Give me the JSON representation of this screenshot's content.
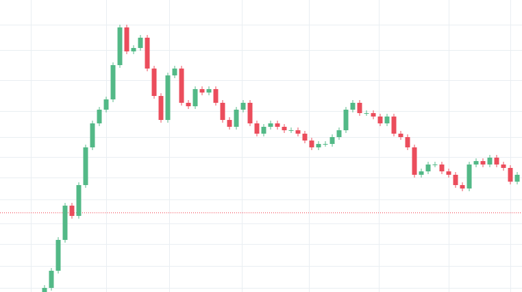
{
  "chart_data": {
    "type": "candlestick",
    "categories": [
      null,
      null,
      null,
      null,
      null,
      null,
      null,
      null,
      null,
      null,
      null,
      null,
      null,
      null,
      null,
      null,
      null,
      null,
      null,
      null,
      null,
      null,
      null,
      null,
      null,
      null,
      null,
      null,
      null,
      null,
      null,
      null,
      null,
      null,
      null,
      null,
      null,
      null,
      null,
      null,
      null,
      null,
      null,
      null,
      null,
      null,
      null,
      null,
      null,
      null,
      null,
      null,
      null,
      null,
      null,
      null,
      null,
      null,
      null,
      null,
      null,
      null,
      null,
      null,
      null,
      null,
      null,
      null,
      null,
      null
    ],
    "open": [
      0,
      6,
      31,
      76,
      126,
      111,
      156,
      211,
      246,
      266,
      281,
      331,
      386,
      351,
      356,
      371,
      326,
      286,
      251,
      316,
      326,
      276,
      271,
      296,
      291,
      296,
      276,
      251,
      241,
      266,
      276,
      246,
      231,
      241,
      246,
      241,
      236,
      236,
      231,
      221,
      211,
      216,
      216,
      226,
      236,
      266,
      276,
      261,
      261,
      256,
      246,
      256,
      231,
      226,
      211,
      171,
      176,
      186,
      186,
      176,
      171,
      156,
      151,
      186,
      191,
      186,
      196,
      186,
      181,
      161
    ],
    "high": [
      10,
      35,
      80,
      130,
      130,
      160,
      215,
      250,
      270,
      285,
      335,
      390,
      390,
      360,
      375,
      375,
      330,
      290,
      320,
      330,
      330,
      280,
      300,
      300,
      300,
      300,
      280,
      255,
      270,
      280,
      280,
      250,
      245,
      250,
      250,
      245,
      240,
      240,
      235,
      225,
      220,
      220,
      230,
      240,
      270,
      280,
      280,
      265,
      265,
      260,
      260,
      260,
      235,
      230,
      215,
      180,
      190,
      190,
      190,
      180,
      175,
      160,
      190,
      195,
      195,
      200,
      200,
      190,
      185,
      175
    ],
    "low": [
      -4,
      2,
      27,
      72,
      107,
      107,
      152,
      207,
      242,
      262,
      277,
      327,
      347,
      347,
      352,
      322,
      282,
      247,
      247,
      312,
      272,
      267,
      267,
      287,
      287,
      272,
      247,
      237,
      237,
      262,
      242,
      227,
      227,
      237,
      237,
      232,
      232,
      227,
      217,
      207,
      207,
      212,
      212,
      222,
      232,
      262,
      257,
      257,
      252,
      242,
      242,
      227,
      222,
      207,
      167,
      167,
      172,
      182,
      172,
      167,
      152,
      147,
      147,
      182,
      182,
      182,
      182,
      177,
      157,
      157
    ],
    "close": [
      6,
      31,
      76,
      126,
      111,
      156,
      211,
      246,
      266,
      281,
      331,
      386,
      351,
      356,
      371,
      326,
      286,
      251,
      316,
      326,
      276,
      271,
      296,
      291,
      296,
      276,
      251,
      241,
      266,
      276,
      246,
      231,
      241,
      246,
      241,
      236,
      236,
      231,
      221,
      211,
      216,
      216,
      226,
      236,
      266,
      276,
      261,
      261,
      256,
      246,
      256,
      231,
      226,
      211,
      171,
      176,
      186,
      186,
      176,
      171,
      156,
      151,
      186,
      191,
      186,
      196,
      186,
      181,
      161,
      171
    ],
    "up_color": "#53b987",
    "down_color": "#eb4d5c",
    "price_line": 116,
    "price_line_color": "#f23645",
    "xlim": [
      -6.5,
      69.7
    ],
    "xticks": [
      -2,
      9,
      18.2,
      28.8,
      38.6,
      48.8,
      59,
      68
    ],
    "ylim": [
      0,
      426
    ],
    "yticks": [
      390,
      353,
      309,
      264,
      226,
      197,
      167,
      135,
      100,
      70,
      38,
      6
    ],
    "grid": true
  }
}
